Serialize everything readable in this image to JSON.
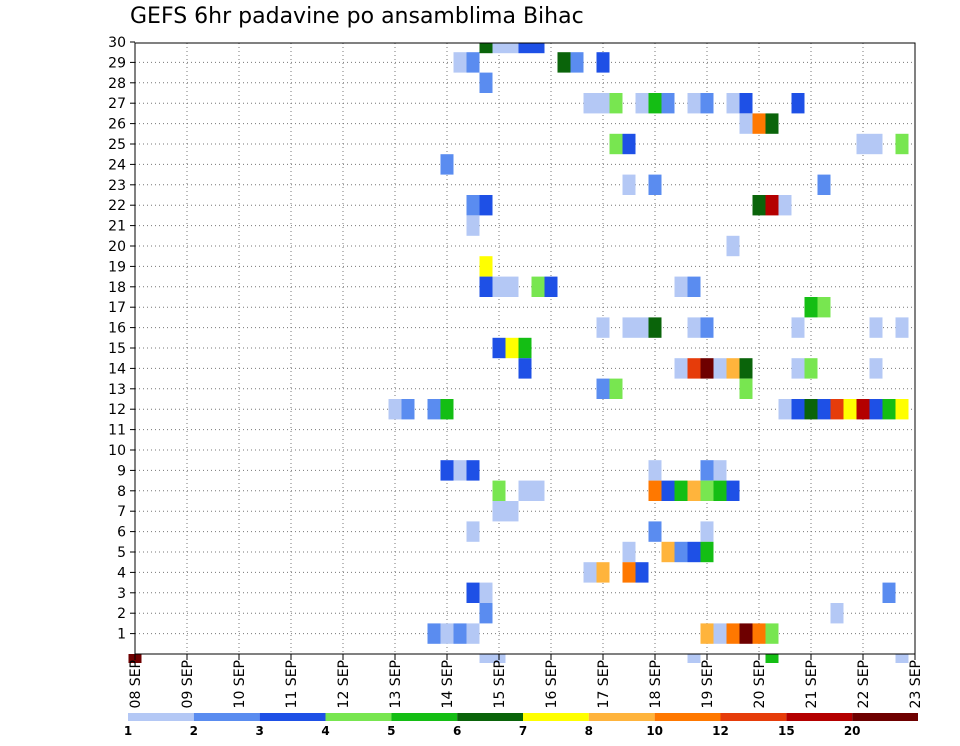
{
  "chart_data": {
    "type": "heatmap",
    "title": "GEFS 6hr padavine po ansamblima Bihac",
    "xlabel": "",
    "ylabel": "",
    "x_tick_labels": [
      "08 SEP",
      "09 SEP",
      "10 SEP",
      "11 SEP",
      "12 SEP",
      "13 SEP",
      "14 SEP",
      "15 SEP",
      "16 SEP",
      "17 SEP",
      "18 SEP",
      "19 SEP",
      "20 SEP",
      "21 SEP",
      "22 SEP",
      "23 SEP"
    ],
    "y_tick_labels": [
      "1",
      "2",
      "3",
      "4",
      "5",
      "6",
      "7",
      "8",
      "9",
      "10",
      "11",
      "12",
      "13",
      "14",
      "15",
      "16",
      "17",
      "18",
      "19",
      "20",
      "21",
      "22",
      "23",
      "24",
      "25",
      "26",
      "27",
      "28",
      "29",
      "30"
    ],
    "x_unit": "day offset from 08 SEP (00z), 6-hour steps",
    "ylim": [
      0,
      30
    ],
    "grid": true,
    "legend": {
      "placement": "bottom",
      "labels": [
        "1",
        "2",
        "3",
        "4",
        "5",
        "6",
        "7",
        "8",
        "10",
        "12",
        "15",
        "20"
      ],
      "colors": [
        "#b4c8f5",
        "#5a8cf0",
        "#1e50e6",
        "#78e650",
        "#14be14",
        "#0a640a",
        "#ffff00",
        "#ffb43c",
        "#ff7800",
        "#e63c0a",
        "#b40000",
        "#6e0000"
      ]
    },
    "cells": [
      {
        "d": 0,
        "m": 0,
        "c": 11
      },
      {
        "d": 6.75,
        "m": 30,
        "c": 5
      },
      {
        "d": 7.0,
        "m": 30,
        "c": 0
      },
      {
        "d": 7.25,
        "m": 30,
        "c": 0
      },
      {
        "d": 7.5,
        "m": 30,
        "c": 2
      },
      {
        "d": 7.75,
        "m": 30,
        "c": 2
      },
      {
        "d": 6.25,
        "m": 29,
        "c": 0
      },
      {
        "d": 6.5,
        "m": 29,
        "c": 1
      },
      {
        "d": 8.25,
        "m": 29,
        "c": 5
      },
      {
        "d": 8.5,
        "m": 29,
        "c": 1
      },
      {
        "d": 9.0,
        "m": 29,
        "c": 2
      },
      {
        "d": 6.75,
        "m": 28,
        "c": 1
      },
      {
        "d": 8.75,
        "m": 27,
        "c": 0
      },
      {
        "d": 9.0,
        "m": 27,
        "c": 0
      },
      {
        "d": 9.25,
        "m": 27,
        "c": 3
      },
      {
        "d": 9.75,
        "m": 27,
        "c": 0
      },
      {
        "d": 10.0,
        "m": 27,
        "c": 4
      },
      {
        "d": 10.25,
        "m": 27,
        "c": 1
      },
      {
        "d": 10.75,
        "m": 27,
        "c": 0
      },
      {
        "d": 11.0,
        "m": 27,
        "c": 1
      },
      {
        "d": 11.5,
        "m": 27,
        "c": 0
      },
      {
        "d": 11.75,
        "m": 27,
        "c": 2
      },
      {
        "d": 12.75,
        "m": 27,
        "c": 2
      },
      {
        "d": 11.75,
        "m": 26,
        "c": 0
      },
      {
        "d": 12.0,
        "m": 26,
        "c": 8
      },
      {
        "d": 12.25,
        "m": 26,
        "c": 5
      },
      {
        "d": 9.25,
        "m": 25,
        "c": 3
      },
      {
        "d": 9.5,
        "m": 25,
        "c": 2
      },
      {
        "d": 14.0,
        "m": 25,
        "c": 0
      },
      {
        "d": 14.25,
        "m": 25,
        "c": 0
      },
      {
        "d": 14.75,
        "m": 25,
        "c": 3
      },
      {
        "d": 6.0,
        "m": 24,
        "c": 1
      },
      {
        "d": 9.5,
        "m": 23,
        "c": 0
      },
      {
        "d": 10.0,
        "m": 23,
        "c": 1
      },
      {
        "d": 13.25,
        "m": 23,
        "c": 1
      },
      {
        "d": 6.5,
        "m": 22,
        "c": 1
      },
      {
        "d": 6.75,
        "m": 22,
        "c": 2
      },
      {
        "d": 12.0,
        "m": 22,
        "c": 5
      },
      {
        "d": 12.25,
        "m": 22,
        "c": 10
      },
      {
        "d": 12.5,
        "m": 22,
        "c": 0
      },
      {
        "d": 6.5,
        "m": 21,
        "c": 0
      },
      {
        "d": 11.5,
        "m": 20,
        "c": 0
      },
      {
        "d": 6.75,
        "m": 19,
        "c": 6
      },
      {
        "d": 6.75,
        "m": 18,
        "c": 2
      },
      {
        "d": 7.0,
        "m": 18,
        "c": 0
      },
      {
        "d": 7.25,
        "m": 18,
        "c": 0
      },
      {
        "d": 7.75,
        "m": 18,
        "c": 3
      },
      {
        "d": 8.0,
        "m": 18,
        "c": 2
      },
      {
        "d": 10.5,
        "m": 18,
        "c": 0
      },
      {
        "d": 10.75,
        "m": 18,
        "c": 1
      },
      {
        "d": 13.0,
        "m": 17,
        "c": 4
      },
      {
        "d": 13.25,
        "m": 17,
        "c": 3
      },
      {
        "d": 9.0,
        "m": 16,
        "c": 0
      },
      {
        "d": 9.5,
        "m": 16,
        "c": 0
      },
      {
        "d": 9.75,
        "m": 16,
        "c": 0
      },
      {
        "d": 10.0,
        "m": 16,
        "c": 5
      },
      {
        "d": 10.75,
        "m": 16,
        "c": 0
      },
      {
        "d": 11.0,
        "m": 16,
        "c": 1
      },
      {
        "d": 12.75,
        "m": 16,
        "c": 0
      },
      {
        "d": 14.25,
        "m": 16,
        "c": 0
      },
      {
        "d": 14.75,
        "m": 16,
        "c": 0
      },
      {
        "d": 7.0,
        "m": 15,
        "c": 2
      },
      {
        "d": 7.25,
        "m": 15,
        "c": 6
      },
      {
        "d": 7.5,
        "m": 15,
        "c": 4
      },
      {
        "d": 7.5,
        "m": 14,
        "c": 2
      },
      {
        "d": 10.5,
        "m": 14,
        "c": 0
      },
      {
        "d": 10.75,
        "m": 14,
        "c": 9
      },
      {
        "d": 11.0,
        "m": 14,
        "c": 11
      },
      {
        "d": 11.25,
        "m": 14,
        "c": 0
      },
      {
        "d": 11.5,
        "m": 14,
        "c": 7
      },
      {
        "d": 11.75,
        "m": 14,
        "c": 5
      },
      {
        "d": 12.75,
        "m": 14,
        "c": 0
      },
      {
        "d": 13.0,
        "m": 14,
        "c": 3
      },
      {
        "d": 14.25,
        "m": 14,
        "c": 0
      },
      {
        "d": 9.0,
        "m": 13,
        "c": 1
      },
      {
        "d": 9.25,
        "m": 13,
        "c": 3
      },
      {
        "d": 11.75,
        "m": 13,
        "c": 3
      },
      {
        "d": 5.0,
        "m": 12,
        "c": 0
      },
      {
        "d": 5.25,
        "m": 12,
        "c": 1
      },
      {
        "d": 5.75,
        "m": 12,
        "c": 1
      },
      {
        "d": 6.0,
        "m": 12,
        "c": 4
      },
      {
        "d": 12.5,
        "m": 12,
        "c": 0
      },
      {
        "d": 12.75,
        "m": 12,
        "c": 2
      },
      {
        "d": 13.0,
        "m": 12,
        "c": 5
      },
      {
        "d": 13.25,
        "m": 12,
        "c": 2
      },
      {
        "d": 13.5,
        "m": 12,
        "c": 9
      },
      {
        "d": 13.75,
        "m": 12,
        "c": 6
      },
      {
        "d": 14.0,
        "m": 12,
        "c": 10
      },
      {
        "d": 14.25,
        "m": 12,
        "c": 2
      },
      {
        "d": 14.5,
        "m": 12,
        "c": 4
      },
      {
        "d": 14.75,
        "m": 12,
        "c": 6
      },
      {
        "d": 6.0,
        "m": 9,
        "c": 2
      },
      {
        "d": 6.25,
        "m": 9,
        "c": 0
      },
      {
        "d": 6.5,
        "m": 9,
        "c": 2
      },
      {
        "d": 10.0,
        "m": 9,
        "c": 0
      },
      {
        "d": 11.0,
        "m": 9,
        "c": 1
      },
      {
        "d": 11.25,
        "m": 9,
        "c": 0
      },
      {
        "d": 7.0,
        "m": 8,
        "c": 3
      },
      {
        "d": 7.5,
        "m": 8,
        "c": 0
      },
      {
        "d": 7.75,
        "m": 8,
        "c": 0
      },
      {
        "d": 10.0,
        "m": 8,
        "c": 8
      },
      {
        "d": 10.25,
        "m": 8,
        "c": 2
      },
      {
        "d": 10.5,
        "m": 8,
        "c": 4
      },
      {
        "d": 10.75,
        "m": 8,
        "c": 7
      },
      {
        "d": 11.0,
        "m": 8,
        "c": 3
      },
      {
        "d": 11.25,
        "m": 8,
        "c": 4
      },
      {
        "d": 11.5,
        "m": 8,
        "c": 2
      },
      {
        "d": 7.0,
        "m": 7,
        "c": 0
      },
      {
        "d": 7.25,
        "m": 7,
        "c": 0
      },
      {
        "d": 6.5,
        "m": 6,
        "c": 0
      },
      {
        "d": 10.0,
        "m": 6,
        "c": 1
      },
      {
        "d": 11.0,
        "m": 6,
        "c": 0
      },
      {
        "d": 9.5,
        "m": 5,
        "c": 0
      },
      {
        "d": 10.25,
        "m": 5,
        "c": 7
      },
      {
        "d": 10.5,
        "m": 5,
        "c": 1
      },
      {
        "d": 10.75,
        "m": 5,
        "c": 2
      },
      {
        "d": 11.0,
        "m": 5,
        "c": 4
      },
      {
        "d": 8.75,
        "m": 4,
        "c": 0
      },
      {
        "d": 9.0,
        "m": 4,
        "c": 7
      },
      {
        "d": 9.5,
        "m": 4,
        "c": 8
      },
      {
        "d": 9.75,
        "m": 4,
        "c": 2
      },
      {
        "d": 6.5,
        "m": 3,
        "c": 2
      },
      {
        "d": 6.75,
        "m": 3,
        "c": 0
      },
      {
        "d": 14.5,
        "m": 3,
        "c": 1
      },
      {
        "d": 6.75,
        "m": 2,
        "c": 1
      },
      {
        "d": 13.5,
        "m": 2,
        "c": 0
      },
      {
        "d": 5.75,
        "m": 1,
        "c": 1
      },
      {
        "d": 6.0,
        "m": 1,
        "c": 0
      },
      {
        "d": 6.25,
        "m": 1,
        "c": 1
      },
      {
        "d": 6.5,
        "m": 1,
        "c": 0
      },
      {
        "d": 11.0,
        "m": 1,
        "c": 7
      },
      {
        "d": 11.25,
        "m": 1,
        "c": 0
      },
      {
        "d": 11.5,
        "m": 1,
        "c": 8
      },
      {
        "d": 11.75,
        "m": 1,
        "c": 11
      },
      {
        "d": 12.0,
        "m": 1,
        "c": 8
      },
      {
        "d": 12.25,
        "m": 1,
        "c": 3
      },
      {
        "d": 6.75,
        "m": 0,
        "c": 0
      },
      {
        "d": 7.0,
        "m": 0,
        "c": 0
      },
      {
        "d": 10.75,
        "m": 0,
        "c": 0
      },
      {
        "d": 12.25,
        "m": 0,
        "c": 4
      },
      {
        "d": 14.75,
        "m": 0,
        "c": 0
      }
    ]
  }
}
